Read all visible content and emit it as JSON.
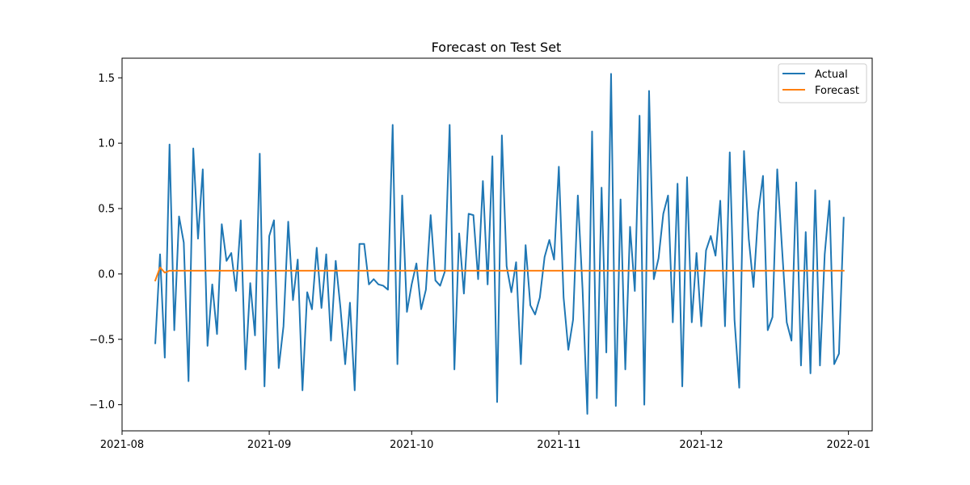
{
  "chart_data": {
    "type": "line",
    "title": "Forecast on Test Set",
    "xlabel": "",
    "ylabel": "",
    "xlim": [
      "2021-08-01",
      "2022-01-06"
    ],
    "ylim": [
      -1.2,
      1.65
    ],
    "x_ticks": [
      "2021-08",
      "2021-09",
      "2021-10",
      "2021-11",
      "2021-12",
      "2022-01"
    ],
    "x_tick_dates": [
      "2021-08-01",
      "2021-09-01",
      "2021-10-01",
      "2021-11-01",
      "2021-12-01",
      "2022-01-01"
    ],
    "y_ticks": [
      -1.0,
      -0.5,
      0.0,
      0.5,
      1.0,
      1.5
    ],
    "y_tick_labels": [
      "−1.0",
      "−0.5",
      "0.0",
      "0.5",
      "1.0",
      "1.5"
    ],
    "grid": false,
    "legend_position": "top-right",
    "series": [
      {
        "name": "Actual",
        "color": "#1f77b4",
        "points": [
          [
            "2021-08-08",
            -0.53
          ],
          [
            "2021-08-09",
            0.15
          ],
          [
            "2021-08-10",
            -0.64
          ],
          [
            "2021-08-11",
            0.99
          ],
          [
            "2021-08-12",
            -0.43
          ],
          [
            "2021-08-13",
            0.44
          ],
          [
            "2021-08-14",
            0.24
          ],
          [
            "2021-08-15",
            -0.82
          ],
          [
            "2021-08-16",
            0.96
          ],
          [
            "2021-08-17",
            0.27
          ],
          [
            "2021-08-18",
            0.8
          ],
          [
            "2021-08-19",
            -0.55
          ],
          [
            "2021-08-20",
            -0.08
          ],
          [
            "2021-08-21",
            -0.46
          ],
          [
            "2021-08-22",
            0.38
          ],
          [
            "2021-08-23",
            0.1
          ],
          [
            "2021-08-24",
            0.16
          ],
          [
            "2021-08-25",
            -0.13
          ],
          [
            "2021-08-26",
            0.41
          ],
          [
            "2021-08-27",
            -0.73
          ],
          [
            "2021-08-28",
            -0.07
          ],
          [
            "2021-08-29",
            -0.47
          ],
          [
            "2021-08-30",
            0.92
          ],
          [
            "2021-08-31",
            -0.86
          ],
          [
            "2021-09-01",
            0.29
          ],
          [
            "2021-09-02",
            0.41
          ],
          [
            "2021-09-03",
            -0.72
          ],
          [
            "2021-09-04",
            -0.4
          ],
          [
            "2021-09-05",
            0.4
          ],
          [
            "2021-09-06",
            -0.2
          ],
          [
            "2021-09-07",
            0.11
          ],
          [
            "2021-09-08",
            -0.89
          ],
          [
            "2021-09-09",
            -0.14
          ],
          [
            "2021-09-10",
            -0.27
          ],
          [
            "2021-09-11",
            0.2
          ],
          [
            "2021-09-12",
            -0.26
          ],
          [
            "2021-09-13",
            0.15
          ],
          [
            "2021-09-14",
            -0.51
          ],
          [
            "2021-09-15",
            0.1
          ],
          [
            "2021-09-16",
            -0.26
          ],
          [
            "2021-09-17",
            -0.69
          ],
          [
            "2021-09-18",
            -0.22
          ],
          [
            "2021-09-19",
            -0.89
          ],
          [
            "2021-09-20",
            0.23
          ],
          [
            "2021-09-21",
            0.23
          ],
          [
            "2021-09-22",
            -0.08
          ],
          [
            "2021-09-23",
            -0.04
          ],
          [
            "2021-09-24",
            -0.08
          ],
          [
            "2021-09-25",
            -0.09
          ],
          [
            "2021-09-26",
            -0.12
          ],
          [
            "2021-09-27",
            1.14
          ],
          [
            "2021-09-28",
            -0.69
          ],
          [
            "2021-09-29",
            0.6
          ],
          [
            "2021-09-30",
            -0.29
          ],
          [
            "2021-10-01",
            -0.08
          ],
          [
            "2021-10-02",
            0.08
          ],
          [
            "2021-10-03",
            -0.27
          ],
          [
            "2021-10-04",
            -0.12
          ],
          [
            "2021-10-05",
            0.45
          ],
          [
            "2021-10-06",
            -0.05
          ],
          [
            "2021-10-07",
            -0.09
          ],
          [
            "2021-10-08",
            0.02
          ],
          [
            "2021-10-09",
            1.14
          ],
          [
            "2021-10-10",
            -0.73
          ],
          [
            "2021-10-11",
            0.31
          ],
          [
            "2021-10-12",
            -0.15
          ],
          [
            "2021-10-13",
            0.46
          ],
          [
            "2021-10-14",
            0.45
          ],
          [
            "2021-10-15",
            -0.04
          ],
          [
            "2021-10-16",
            0.71
          ],
          [
            "2021-10-17",
            -0.08
          ],
          [
            "2021-10-18",
            0.9
          ],
          [
            "2021-10-19",
            -0.98
          ],
          [
            "2021-10-20",
            1.06
          ],
          [
            "2021-10-21",
            0.06
          ],
          [
            "2021-10-22",
            -0.14
          ],
          [
            "2021-10-23",
            0.09
          ],
          [
            "2021-10-24",
            -0.69
          ],
          [
            "2021-10-25",
            0.22
          ],
          [
            "2021-10-26",
            -0.24
          ],
          [
            "2021-10-27",
            -0.31
          ],
          [
            "2021-10-28",
            -0.18
          ],
          [
            "2021-10-29",
            0.13
          ],
          [
            "2021-10-30",
            0.26
          ],
          [
            "2021-10-31",
            0.11
          ],
          [
            "2021-11-01",
            0.82
          ],
          [
            "2021-11-02",
            -0.18
          ],
          [
            "2021-11-03",
            -0.58
          ],
          [
            "2021-11-04",
            -0.35
          ],
          [
            "2021-11-05",
            0.6
          ],
          [
            "2021-11-06",
            -0.12
          ],
          [
            "2021-11-07",
            -1.07
          ],
          [
            "2021-11-08",
            1.09
          ],
          [
            "2021-11-09",
            -0.95
          ],
          [
            "2021-11-10",
            0.66
          ],
          [
            "2021-11-11",
            -0.6
          ],
          [
            "2021-11-12",
            1.53
          ],
          [
            "2021-11-13",
            -1.01
          ],
          [
            "2021-11-14",
            0.57
          ],
          [
            "2021-11-15",
            -0.73
          ],
          [
            "2021-11-16",
            0.36
          ],
          [
            "2021-11-17",
            -0.13
          ],
          [
            "2021-11-18",
            1.21
          ],
          [
            "2021-11-19",
            -1.0
          ],
          [
            "2021-11-20",
            1.4
          ],
          [
            "2021-11-21",
            -0.04
          ],
          [
            "2021-11-22",
            0.12
          ],
          [
            "2021-11-23",
            0.46
          ],
          [
            "2021-11-24",
            0.6
          ],
          [
            "2021-11-25",
            -0.37
          ],
          [
            "2021-11-26",
            0.69
          ],
          [
            "2021-11-27",
            -0.86
          ],
          [
            "2021-11-28",
            0.74
          ],
          [
            "2021-11-29",
            -0.37
          ],
          [
            "2021-11-30",
            0.16
          ],
          [
            "2021-12-01",
            -0.4
          ],
          [
            "2021-12-02",
            0.18
          ],
          [
            "2021-12-03",
            0.29
          ],
          [
            "2021-12-04",
            0.14
          ],
          [
            "2021-12-05",
            0.56
          ],
          [
            "2021-12-06",
            -0.4
          ],
          [
            "2021-12-07",
            0.93
          ],
          [
            "2021-12-08",
            -0.35
          ],
          [
            "2021-12-09",
            -0.87
          ],
          [
            "2021-12-10",
            0.94
          ],
          [
            "2021-12-11",
            0.27
          ],
          [
            "2021-12-12",
            -0.1
          ],
          [
            "2021-12-13",
            0.47
          ],
          [
            "2021-12-14",
            0.75
          ],
          [
            "2021-12-15",
            -0.43
          ],
          [
            "2021-12-16",
            -0.33
          ],
          [
            "2021-12-17",
            0.8
          ],
          [
            "2021-12-18",
            0.2
          ],
          [
            "2021-12-19",
            -0.37
          ],
          [
            "2021-12-20",
            -0.51
          ],
          [
            "2021-12-21",
            0.7
          ],
          [
            "2021-12-22",
            -0.7
          ],
          [
            "2021-12-23",
            0.32
          ],
          [
            "2021-12-24",
            -0.76
          ],
          [
            "2021-12-25",
            0.64
          ],
          [
            "2021-12-26",
            -0.7
          ],
          [
            "2021-12-27",
            0.15
          ],
          [
            "2021-12-28",
            0.56
          ],
          [
            "2021-12-29",
            -0.69
          ],
          [
            "2021-12-30",
            -0.61
          ],
          [
            "2021-12-31",
            0.43
          ]
        ]
      },
      {
        "name": "Forecast",
        "color": "#ff7f0e",
        "points": [
          [
            "2021-08-08",
            -0.05
          ],
          [
            "2021-08-09",
            0.05
          ],
          [
            "2021-08-10",
            0.01
          ],
          [
            "2021-08-11",
            0.025
          ],
          [
            "2021-08-20",
            0.025
          ],
          [
            "2021-09-01",
            0.025
          ],
          [
            "2021-10-01",
            0.025
          ],
          [
            "2021-11-01",
            0.025
          ],
          [
            "2021-12-01",
            0.025
          ],
          [
            "2021-12-31",
            0.025
          ]
        ]
      }
    ]
  }
}
